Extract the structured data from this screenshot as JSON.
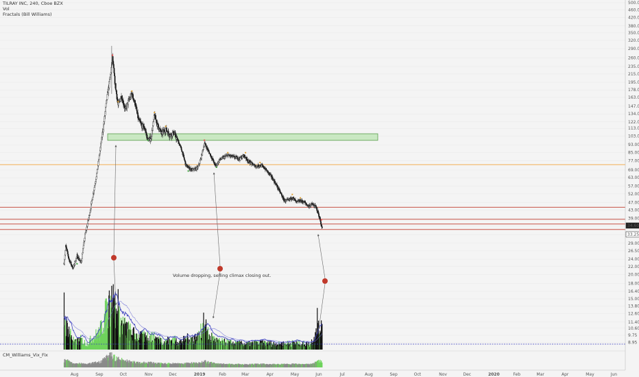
{
  "header": {
    "title": "TILRAY INC, 240, Cboe BZX",
    "indicator_vol": "Vol",
    "indicator_fractals": "Fractals (Bill Williams)"
  },
  "subpane": {
    "label": "CM_Williams_Vix_Fix"
  },
  "annotation": {
    "text": "Volume dropping, selling climax closing out."
  },
  "colors": {
    "background": "#f4f4f4",
    "up_candle": "#2d2d2d",
    "down_candle": "#111111",
    "green_zone": "#c9e8c2",
    "orange_line": "#f2a23b",
    "red_line": "#c0392b",
    "blue_line": "#3a3fbf",
    "dot": "#c0392b",
    "volume_up": "#6fd35c",
    "volume_down": "#111111"
  },
  "chart_data": {
    "type": "candlestick",
    "title": "TILRAY INC, 240, Cboe BZX",
    "y_scale": "log",
    "price_axis_ticks": [
      "500.00",
      "460.00",
      "420.00",
      "380.00",
      "350.00",
      "320.00",
      "290.00",
      "260.00",
      "235.00",
      "215.00",
      "195.00",
      "178.00",
      "163.00",
      "147.00",
      "134.00",
      "122.00",
      "113.00",
      "103.00",
      "93.00",
      "85.00",
      "77.00",
      "69.00",
      "63.00",
      "57.00",
      "52.00",
      "47.00",
      "43.00",
      "39.00",
      "35.50",
      "32.00",
      "29.00",
      "26.50",
      "24.00",
      "22.00",
      "20.00",
      "18.00",
      "16.40",
      "15.00",
      "13.80",
      "12.60",
      "11.40",
      "10.60",
      "9.75",
      "8.95"
    ],
    "time_axis_ticks": [
      "Aug",
      "Sep",
      "Oct",
      "Nov",
      "Dec",
      "2019",
      "Feb",
      "Mar",
      "Apr",
      "May",
      "Jun",
      "Jul",
      "Aug",
      "Sep",
      "Oct",
      "Nov",
      "Dec",
      "2020",
      "Feb",
      "Mar",
      "Apr",
      "May",
      "Jun"
    ],
    "last_price_labels": [
      "34.60",
      "33.25"
    ],
    "support_zone": {
      "low": 98,
      "high": 106
    },
    "horizontal_lines": [
      {
        "color": "orange",
        "value": 73.5
      },
      {
        "color": "red",
        "value": 44.4
      },
      {
        "color": "red",
        "value": 38.5
      },
      {
        "color": "red",
        "value": 36.4
      },
      {
        "color": "red",
        "value": 34.1
      }
    ],
    "price_path": [
      [
        "2018-07-19",
        23
      ],
      [
        "2018-07-21",
        28
      ],
      [
        "2018-07-25",
        24
      ],
      [
        "2018-07-30",
        21.5
      ],
      [
        "2018-08-04",
        25
      ],
      [
        "2018-08-09",
        23
      ],
      [
        "2018-08-14",
        32
      ],
      [
        "2018-08-19",
        40
      ],
      [
        "2018-08-24",
        52
      ],
      [
        "2018-08-29",
        68
      ],
      [
        "2018-09-02",
        90
      ],
      [
        "2018-09-06",
        118
      ],
      [
        "2018-09-10",
        160
      ],
      [
        "2018-09-14",
        205
      ],
      [
        "2018-09-17",
        260
      ],
      [
        "2018-09-20",
        195
      ],
      [
        "2018-09-24",
        148
      ],
      [
        "2018-09-28",
        166
      ],
      [
        "2018-10-03",
        141
      ],
      [
        "2018-10-07",
        156
      ],
      [
        "2018-10-11",
        170
      ],
      [
        "2018-10-15",
        152
      ],
      [
        "2018-10-19",
        126
      ],
      [
        "2018-10-23",
        117
      ],
      [
        "2018-10-27",
        113
      ],
      [
        "2018-10-31",
        98
      ],
      [
        "2018-11-04",
        102
      ],
      [
        "2018-11-08",
        132
      ],
      [
        "2018-11-12",
        117
      ],
      [
        "2018-11-17",
        106
      ],
      [
        "2018-11-22",
        112
      ],
      [
        "2018-11-27",
        104
      ],
      [
        "2018-12-02",
        107
      ],
      [
        "2018-12-07",
        98
      ],
      [
        "2018-12-12",
        87
      ],
      [
        "2018-12-17",
        73
      ],
      [
        "2018-12-22",
        70
      ],
      [
        "2018-12-27",
        69
      ],
      [
        "2019-01-01",
        71
      ],
      [
        "2019-01-05",
        80
      ],
      [
        "2019-01-09",
        95
      ],
      [
        "2019-01-13",
        88
      ],
      [
        "2019-01-18",
        80
      ],
      [
        "2019-01-23",
        72
      ],
      [
        "2019-01-28",
        78
      ],
      [
        "2019-02-02",
        80
      ],
      [
        "2019-02-07",
        82
      ],
      [
        "2019-02-12",
        81
      ],
      [
        "2019-02-17",
        80
      ],
      [
        "2019-02-22",
        79
      ],
      [
        "2019-02-27",
        82
      ],
      [
        "2019-03-04",
        77
      ],
      [
        "2019-03-09",
        74
      ],
      [
        "2019-03-14",
        72
      ],
      [
        "2019-03-19",
        73
      ],
      [
        "2019-03-24",
        71
      ],
      [
        "2019-03-29",
        67
      ],
      [
        "2019-04-03",
        63
      ],
      [
        "2019-04-08",
        58
      ],
      [
        "2019-04-13",
        53
      ],
      [
        "2019-04-18",
        48
      ],
      [
        "2019-04-23",
        48
      ],
      [
        "2019-04-28",
        50
      ],
      [
        "2019-05-03",
        47
      ],
      [
        "2019-05-08",
        48
      ],
      [
        "2019-05-13",
        47
      ],
      [
        "2019-05-18",
        45
      ],
      [
        "2019-05-23",
        46
      ],
      [
        "2019-05-28",
        44
      ],
      [
        "2019-06-01",
        39
      ],
      [
        "2019-06-04",
        34.5
      ]
    ],
    "volume_profile": [
      [
        "2018-07-19",
        0.5
      ],
      [
        "2018-07-25",
        0.35
      ],
      [
        "2018-08-01",
        0.12
      ],
      [
        "2018-08-09",
        0.18
      ],
      [
        "2018-08-16",
        0.1
      ],
      [
        "2018-08-24",
        0.22
      ],
      [
        "2018-09-01",
        0.3
      ],
      [
        "2018-09-06",
        0.55
      ],
      [
        "2018-09-12",
        0.72
      ],
      [
        "2018-09-17",
        0.95
      ],
      [
        "2018-09-21",
        0.6
      ],
      [
        "2018-09-27",
        0.5
      ],
      [
        "2018-10-03",
        0.4
      ],
      [
        "2018-10-11",
        0.3
      ],
      [
        "2018-10-20",
        0.22
      ],
      [
        "2018-11-01",
        0.25
      ],
      [
        "2018-11-10",
        0.2
      ],
      [
        "2018-11-20",
        0.15
      ],
      [
        "2018-12-01",
        0.18
      ],
      [
        "2018-12-10",
        0.14
      ],
      [
        "2018-12-20",
        0.2
      ],
      [
        "2019-01-01",
        0.22
      ],
      [
        "2019-01-08",
        0.4
      ],
      [
        "2019-01-15",
        0.25
      ],
      [
        "2019-01-25",
        0.15
      ],
      [
        "2019-02-10",
        0.12
      ],
      [
        "2019-03-01",
        0.1
      ],
      [
        "2019-03-20",
        0.12
      ],
      [
        "2019-04-10",
        0.1
      ],
      [
        "2019-05-01",
        0.12
      ],
      [
        "2019-05-20",
        0.1
      ],
      [
        "2019-06-04",
        0.45
      ]
    ],
    "volume_spikes": [
      [
        "2018-07-19",
        0.85
      ],
      [
        "2018-09-13",
        0.88
      ],
      [
        "2018-09-16",
        0.95
      ],
      [
        "2018-09-19",
        0.8
      ],
      [
        "2018-09-24",
        0.9
      ],
      [
        "2019-01-08",
        0.55
      ],
      [
        "2019-01-11",
        0.45
      ],
      [
        "2019-05-29",
        0.62
      ],
      [
        "2019-06-04",
        0.38
      ]
    ],
    "arrow_dot_times": [
      "2018-10-01",
      "2019-01-26",
      "2019-06-14"
    ]
  }
}
